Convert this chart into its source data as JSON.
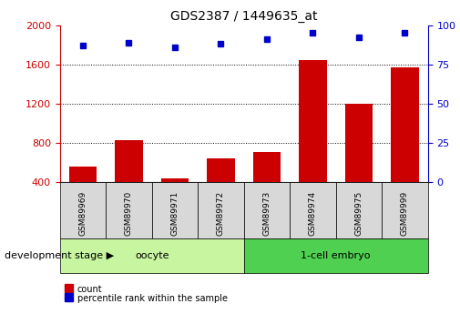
{
  "title": "GDS2387 / 1449635_at",
  "samples": [
    "GSM89969",
    "GSM89970",
    "GSM89971",
    "GSM89972",
    "GSM89973",
    "GSM89974",
    "GSM89975",
    "GSM89999"
  ],
  "counts": [
    560,
    830,
    440,
    640,
    710,
    1640,
    1200,
    1570
  ],
  "percentiles": [
    87,
    89,
    86,
    88,
    91,
    95,
    92,
    95
  ],
  "groups": [
    {
      "label": "oocyte",
      "indices": [
        0,
        1,
        2,
        3
      ],
      "color": "#c8f5a0"
    },
    {
      "label": "1-cell embryo",
      "indices": [
        4,
        5,
        6,
        7
      ],
      "color": "#50d050"
    }
  ],
  "group_label": "development stage",
  "bar_color": "#cc0000",
  "dot_color": "#0000cc",
  "left_axis_color": "#cc0000",
  "right_axis_color": "#0000cc",
  "ylim_left": [
    400,
    2000
  ],
  "ylim_right": [
    0,
    100
  ],
  "yticks_left": [
    400,
    800,
    1200,
    1600,
    2000
  ],
  "yticks_right": [
    0,
    25,
    50,
    75,
    100
  ],
  "legend_count_label": "count",
  "legend_pct_label": "percentile rank within the sample",
  "xtick_bg_color": "#d8d8d8",
  "n_samples": 8
}
